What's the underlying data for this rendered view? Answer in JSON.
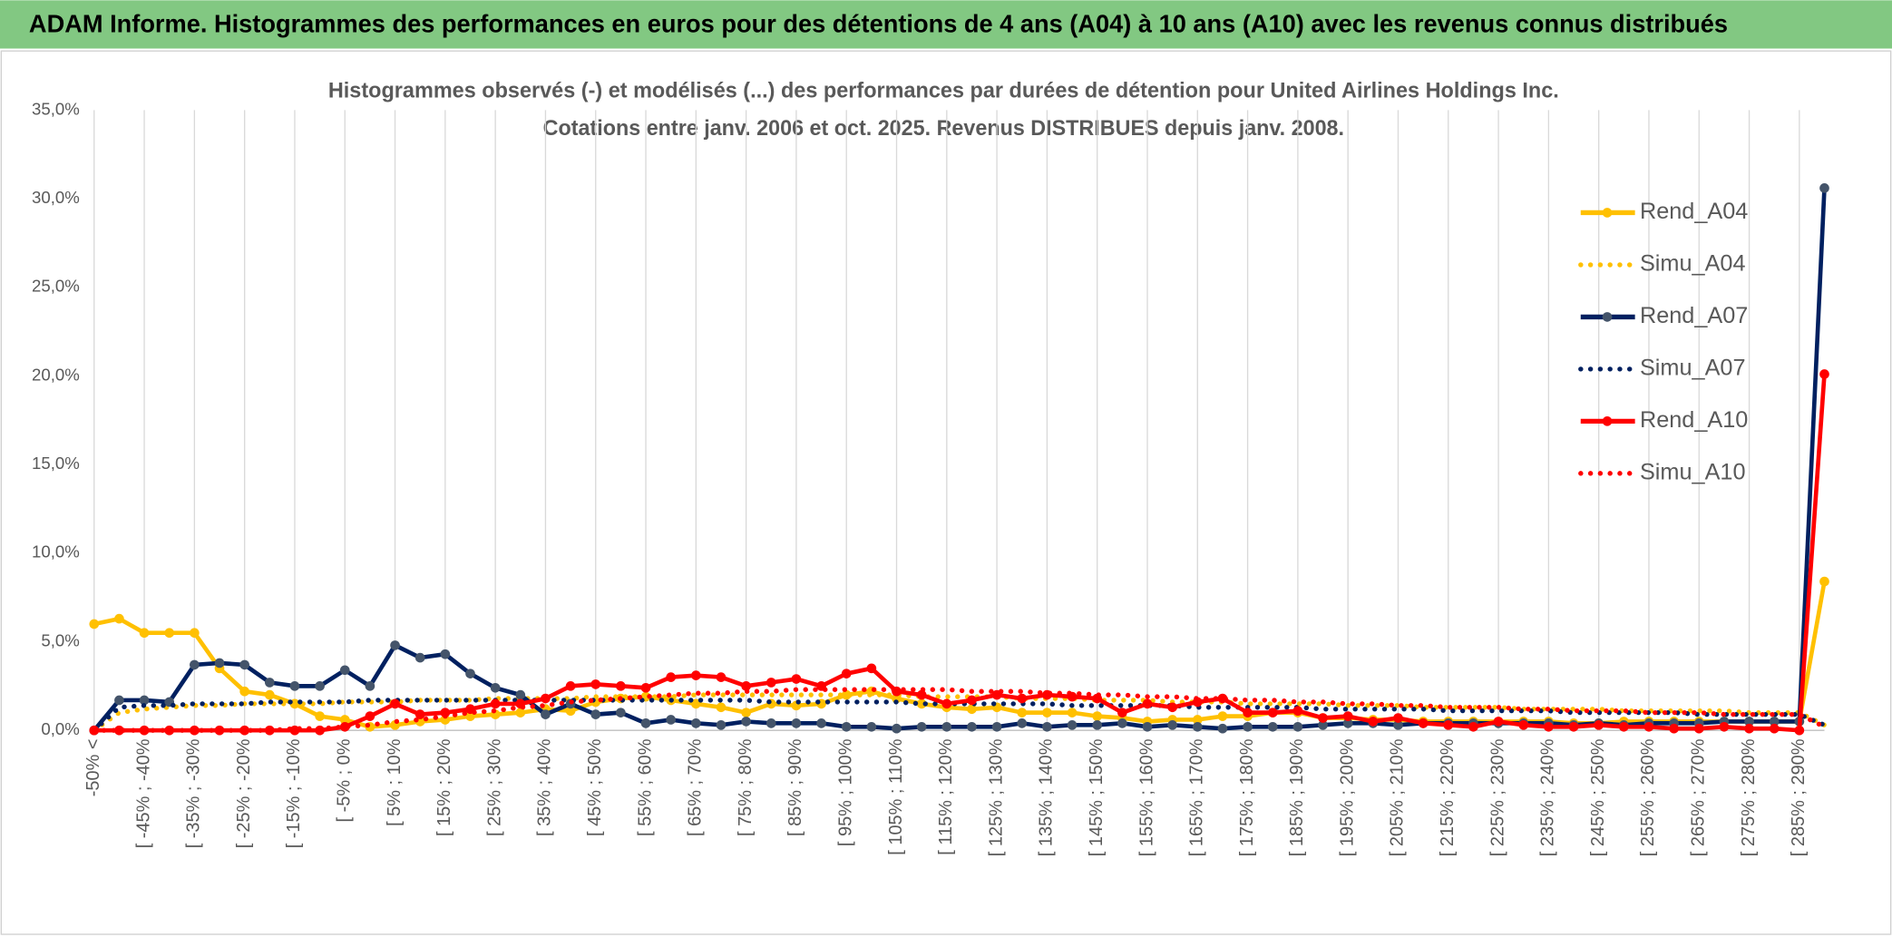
{
  "header": {
    "title": "ADAM Informe. Histogrammes des performances en euros pour des détentions de 4 ans (A04) à 10 ans (A10) avec les revenus connus distribués"
  },
  "chart_data": {
    "type": "line",
    "title": "Histogrammes observés (-) et modélisés (...) des performances par durées de détention pour United Airlines Holdings Inc.",
    "subtitle": "Cotations entre janv. 2006 et oct. 2025. Revenus DISTRIBUES depuis janv. 2008.",
    "categories": [
      "-50% <",
      null,
      "[ -45% ; -40%",
      null,
      "[ -35% ; -30%",
      null,
      "[ -25% ; -20%",
      null,
      "[ -15% ; -10%",
      null,
      "[ -5% ; 0%",
      null,
      "[ 5% ; 10%",
      null,
      "[ 15% ; 20%",
      null,
      "[ 25% ; 30%",
      null,
      "[ 35% ; 40%",
      null,
      "[ 45% ; 50%",
      null,
      "[ 55% ; 60%",
      null,
      "[ 65% ; 70%",
      null,
      "[ 75% ; 80%",
      null,
      "[ 85% ; 90%",
      null,
      "[ 95% ; 100%",
      null,
      "[ 105% ; 110%",
      null,
      "[ 115% ; 120%",
      null,
      "[ 125% ; 130%",
      null,
      "[ 135% ; 140%",
      null,
      "[ 145% ; 150%",
      null,
      "[ 155% ; 160%",
      null,
      "[ 165% ; 170%",
      null,
      "[ 175% ; 180%",
      null,
      "[ 185% ; 190%",
      null,
      "[ 195% ; 200%",
      null,
      "[ 205% ; 210%",
      null,
      "[ 215% ; 220%",
      null,
      "[ 225% ; 230%",
      null,
      "[ 235% ; 240%",
      null,
      "[ 245% ; 250%",
      null,
      "[ 255% ; 260%",
      null,
      "[ 265% ; 270%",
      null,
      "[ 275% ; 280%",
      null,
      "[ 285% ; 290%",
      null
    ],
    "series": [
      {
        "name": "Rend_A04",
        "color": "#FFC000",
        "style": "solid",
        "markers": true,
        "values": [
          6.0,
          6.3,
          5.5,
          5.5,
          5.5,
          3.5,
          2.2,
          2.0,
          1.5,
          0.8,
          0.6,
          0.2,
          0.3,
          0.5,
          0.6,
          0.8,
          0.9,
          1.0,
          1.2,
          1.1,
          1.6,
          1.8,
          1.9,
          1.7,
          1.5,
          1.3,
          1.0,
          1.5,
          1.4,
          1.5,
          2.0,
          2.2,
          1.8,
          1.5,
          1.3,
          1.2,
          1.3,
          1.0,
          1.0,
          1.0,
          0.8,
          0.7,
          0.5,
          0.6,
          0.6,
          0.8,
          0.8,
          1.0,
          1.0,
          0.7,
          0.7,
          0.6,
          0.6,
          0.5,
          0.5,
          0.5,
          0.5,
          0.5,
          0.5,
          0.4,
          0.4,
          0.5,
          0.5,
          0.5,
          0.5,
          0.5,
          0.5,
          0.5,
          0.5,
          8.4
        ]
      },
      {
        "name": "Simu_A04",
        "color": "#FFC000",
        "style": "dotted",
        "markers": false,
        "values": [
          0,
          1.0,
          1.2,
          1.3,
          1.4,
          1.4,
          1.5,
          1.5,
          1.5,
          1.5,
          1.6,
          1.6,
          1.6,
          1.7,
          1.7,
          1.7,
          1.8,
          1.8,
          1.8,
          1.8,
          1.9,
          1.9,
          1.9,
          1.9,
          2.0,
          2.0,
          2.0,
          2.0,
          2.0,
          2.0,
          2.0,
          2.0,
          2.0,
          1.9,
          1.9,
          1.9,
          1.9,
          1.8,
          1.8,
          1.8,
          1.7,
          1.7,
          1.7,
          1.6,
          1.6,
          1.6,
          1.5,
          1.5,
          1.5,
          1.5,
          1.4,
          1.4,
          1.4,
          1.3,
          1.3,
          1.3,
          1.3,
          1.2,
          1.2,
          1.2,
          1.2,
          1.1,
          1.1,
          1.1,
          1.1,
          1.1,
          1.0,
          1.0,
          1.0,
          0.3
        ]
      },
      {
        "name": "Rend_A07",
        "color": "#002060",
        "marker_color": "#44546A",
        "style": "solid",
        "markers": true,
        "values": [
          0,
          1.7,
          1.7,
          1.6,
          3.7,
          3.8,
          3.7,
          2.7,
          2.5,
          2.5,
          3.4,
          2.5,
          4.8,
          4.1,
          4.3,
          3.2,
          2.4,
          2.0,
          0.9,
          1.5,
          0.9,
          1.0,
          0.4,
          0.6,
          0.4,
          0.3,
          0.5,
          0.4,
          0.4,
          0.4,
          0.2,
          0.2,
          0.1,
          0.2,
          0.2,
          0.2,
          0.2,
          0.4,
          0.2,
          0.3,
          0.3,
          0.4,
          0.2,
          0.3,
          0.2,
          0.1,
          0.2,
          0.2,
          0.2,
          0.3,
          0.4,
          0.4,
          0.3,
          0.4,
          0.4,
          0.4,
          0.4,
          0.4,
          0.4,
          0.3,
          0.4,
          0.3,
          0.4,
          0.4,
          0.4,
          0.5,
          0.5,
          0.5,
          0.5,
          30.6
        ]
      },
      {
        "name": "Simu_A07",
        "color": "#002060",
        "style": "dotted",
        "markers": false,
        "values": [
          0,
          1.3,
          1.4,
          1.4,
          1.5,
          1.5,
          1.5,
          1.6,
          1.6,
          1.6,
          1.6,
          1.7,
          1.7,
          1.7,
          1.7,
          1.7,
          1.7,
          1.7,
          1.7,
          1.7,
          1.7,
          1.7,
          1.7,
          1.7,
          1.7,
          1.7,
          1.7,
          1.6,
          1.6,
          1.6,
          1.6,
          1.6,
          1.6,
          1.5,
          1.5,
          1.5,
          1.5,
          1.5,
          1.5,
          1.4,
          1.4,
          1.4,
          1.4,
          1.4,
          1.3,
          1.3,
          1.3,
          1.3,
          1.3,
          1.2,
          1.2,
          1.2,
          1.2,
          1.2,
          1.1,
          1.1,
          1.1,
          1.1,
          1.1,
          1.0,
          1.0,
          1.0,
          1.0,
          1.0,
          0.9,
          0.9,
          0.9,
          0.9,
          0.9,
          0.3
        ]
      },
      {
        "name": "Rend_A10",
        "color": "#FF0000",
        "style": "solid",
        "markers": true,
        "values": [
          0,
          0,
          0,
          0,
          0,
          0,
          0,
          0,
          0,
          0,
          0.2,
          0.8,
          1.5,
          0.9,
          1.0,
          1.2,
          1.5,
          1.5,
          1.8,
          2.5,
          2.6,
          2.5,
          2.4,
          3.0,
          3.1,
          3.0,
          2.5,
          2.7,
          2.9,
          2.5,
          3.2,
          3.5,
          2.2,
          2.0,
          1.5,
          1.7,
          2.0,
          1.8,
          2.0,
          1.9,
          1.8,
          1.0,
          1.5,
          1.3,
          1.6,
          1.8,
          1.0,
          1.0,
          1.1,
          0.7,
          0.8,
          0.5,
          0.7,
          0.4,
          0.3,
          0.2,
          0.5,
          0.3,
          0.2,
          0.2,
          0.3,
          0.2,
          0.2,
          0.1,
          0.1,
          0.2,
          0.1,
          0.1,
          0,
          20.1
        ]
      },
      {
        "name": "Simu_A10",
        "color": "#FF0000",
        "style": "dotted",
        "markers": false,
        "values": [
          0,
          0,
          0,
          0,
          0,
          0,
          0,
          0,
          0.1,
          0.1,
          0.2,
          0.3,
          0.5,
          0.6,
          0.8,
          1.0,
          1.1,
          1.3,
          1.4,
          1.6,
          1.7,
          1.8,
          1.9,
          2.0,
          2.1,
          2.1,
          2.2,
          2.2,
          2.3,
          2.3,
          2.3,
          2.3,
          2.3,
          2.3,
          2.3,
          2.2,
          2.2,
          2.2,
          2.1,
          2.1,
          2.0,
          2.0,
          1.9,
          1.9,
          1.8,
          1.8,
          1.7,
          1.7,
          1.6,
          1.6,
          1.5,
          1.5,
          1.4,
          1.4,
          1.3,
          1.3,
          1.3,
          1.2,
          1.2,
          1.1,
          1.1,
          1.1,
          1.0,
          1.0,
          1.0,
          0.9,
          0.9,
          0.9,
          0.9,
          0.2
        ]
      }
    ],
    "ylim": [
      0,
      35
    ],
    "yticks": [
      {
        "value": 0,
        "label": "0,0%"
      },
      {
        "value": 5,
        "label": "5,0%"
      },
      {
        "value": 10,
        "label": "10,0%"
      },
      {
        "value": 15,
        "label": "15,0%"
      },
      {
        "value": 20,
        "label": "20,0%"
      },
      {
        "value": 25,
        "label": "25,0%"
      },
      {
        "value": 30,
        "label": "30,0%"
      },
      {
        "value": 35,
        "label": "35,0%"
      }
    ],
    "grid": true,
    "legend": "right"
  }
}
